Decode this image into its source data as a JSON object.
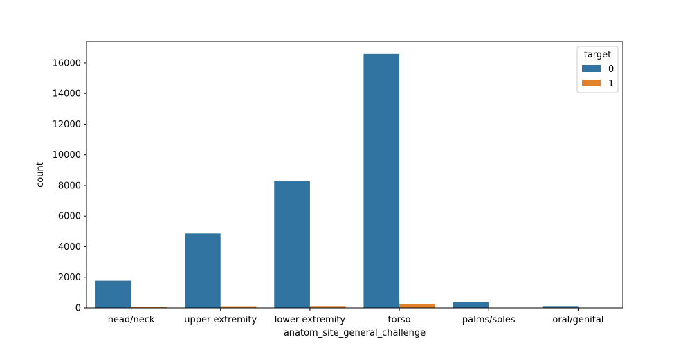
{
  "chart_data": {
    "type": "bar",
    "title": "",
    "xlabel": "anatom_site_general_challenge",
    "ylabel": "count",
    "categories": [
      "head/neck",
      "upper extremity",
      "lower extremity",
      "torso",
      "palms/soles",
      "oral/genital"
    ],
    "series": [
      {
        "name": "0",
        "color": "#3274a1",
        "values": [
          1781,
          4866,
          8281,
          16594,
          371,
          120
        ]
      },
      {
        "name": "1",
        "color": "#e1812c",
        "values": [
          74,
          111,
          124,
          257,
          4,
          4
        ]
      }
    ],
    "ylim": [
      0,
      17400
    ],
    "yticks": [
      0,
      2000,
      4000,
      6000,
      8000,
      10000,
      12000,
      14000,
      16000
    ],
    "grid": false,
    "legend": {
      "title": "target",
      "placement": "top-right"
    }
  }
}
